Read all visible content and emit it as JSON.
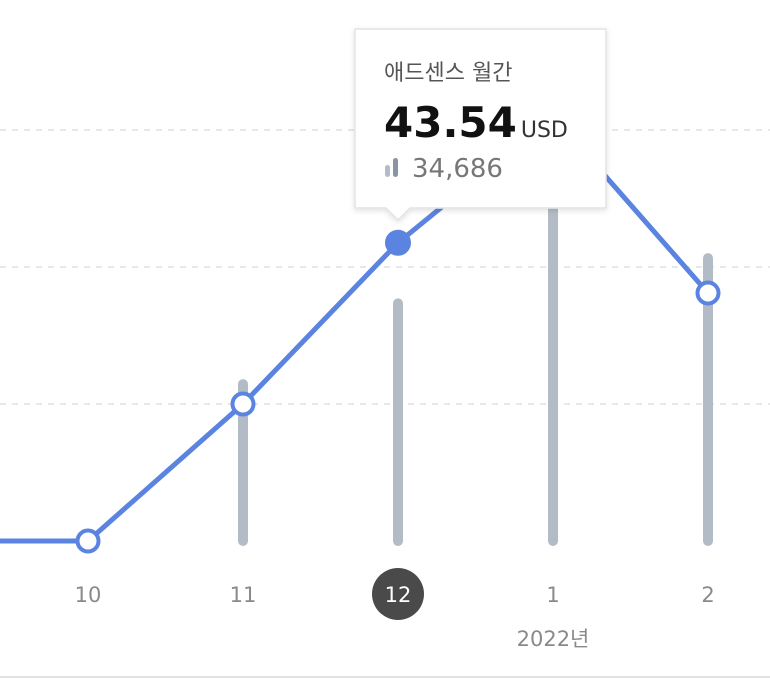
{
  "chart_data": {
    "type": "bar-line",
    "categories": [
      null,
      "10",
      "11",
      "12",
      "1",
      "2"
    ],
    "selected": 3,
    "year_label": "2022년",
    "series": [
      {
        "name": "애드센스 월간",
        "type": "line",
        "color": "#5b83e0",
        "values": [
          0,
          0,
          20,
          43.54,
          62,
          36.2
        ]
      },
      {
        "type": "bar",
        "axis": "y2",
        "color": "#b3bcc6",
        "values": [
          null,
          null,
          22900,
          34686,
          50000,
          41300
        ],
        "value_labels": [
          null,
          null,
          null,
          "34,686",
          null,
          null
        ]
      }
    ],
    "tooltip": {
      "unit": "USD"
    },
    "ylim": [
      0,
      80
    ],
    "yticks": [
      20,
      40,
      60
    ],
    "y2lim": [
      0,
      80000
    ],
    "grid": true
  }
}
